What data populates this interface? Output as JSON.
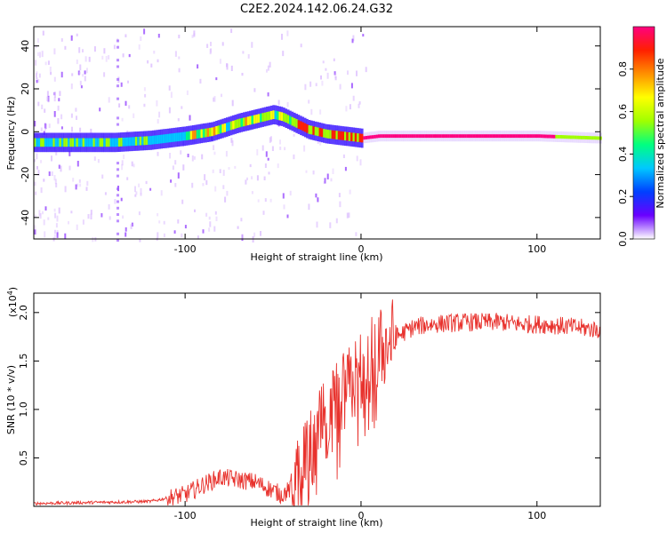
{
  "title": "C2E2.2024.142.06.24.G32",
  "chart_data": [
    {
      "type": "heatmap",
      "name": "spectrogram",
      "xlabel": "Height of straight line (km)",
      "ylabel": "Frequency (Hz)",
      "xlim": [
        -186,
        136
      ],
      "ylim": [
        -50,
        49
      ],
      "xticks": [
        -100,
        0,
        100
      ],
      "xtick_labels": [
        "-100",
        "0",
        "100"
      ],
      "yticks": [
        40,
        20,
        0,
        -20,
        -40
      ],
      "ytick_labels": [
        "40",
        "20",
        "0",
        "-20",
        "-40"
      ],
      "ridge": {
        "x": [
          -186,
          -160,
          -140,
          -120,
          -100,
          -85,
          -70,
          -60,
          -50,
          -45,
          -40,
          -35,
          -30,
          -25,
          -20,
          -10,
          0,
          10,
          50,
          100,
          136
        ],
        "y": [
          -5,
          -5,
          -5,
          -4,
          -2,
          0,
          4,
          6,
          8,
          7,
          5,
          3,
          1,
          0,
          -1,
          -2,
          -3,
          -2,
          -2,
          -2,
          -3
        ]
      },
      "colorbar": {
        "label": "Normalized spectral amplitude",
        "range": [
          0.0,
          1.0
        ],
        "ticks": [
          0.0,
          0.2,
          0.4,
          0.6,
          0.8
        ],
        "tick_labels": [
          "0.0",
          "0.2",
          "0.4",
          "0.6",
          "0.8"
        ]
      },
      "colors": [
        "#ffffff",
        "#6a00ff",
        "#0040ff",
        "#00c8ff",
        "#00ff80",
        "#a0ff00",
        "#ffff00",
        "#ff9000",
        "#ff2000",
        "#ff0080"
      ]
    },
    {
      "type": "line",
      "name": "snr",
      "xlabel": "Height of straight line (km)",
      "ylabel": "SNR (10 * v/v)",
      "scale_label": "(x10",
      "scale_exp": "4",
      "scale_close": ")",
      "xlim": [
        -186,
        136
      ],
      "ylim": [
        0,
        2.2
      ],
      "xticks": [
        -100,
        0,
        100
      ],
      "xtick_labels": [
        "-100",
        "0",
        "100"
      ],
      "yticks": [
        0.5,
        1.0,
        1.5,
        2.0
      ],
      "ytick_labels": [
        "0.5",
        "1.0",
        "1.5",
        "2.0"
      ],
      "color": "#e8322d",
      "envelope": {
        "x": [
          -186,
          -120,
          -100,
          -90,
          -80,
          -60,
          -45,
          -38,
          -30,
          -25,
          -20,
          -15,
          -10,
          -5,
          0,
          10,
          20,
          30,
          40,
          60,
          80,
          90,
          100,
          110,
          136
        ],
        "y": [
          0.03,
          0.05,
          0.12,
          0.22,
          0.3,
          0.25,
          0.12,
          0.2,
          0.5,
          0.75,
          0.85,
          1.0,
          1.15,
          1.25,
          1.4,
          1.6,
          1.75,
          1.85,
          1.88,
          1.9,
          1.9,
          1.88,
          1.88,
          1.87,
          1.82
        ]
      }
    }
  ]
}
